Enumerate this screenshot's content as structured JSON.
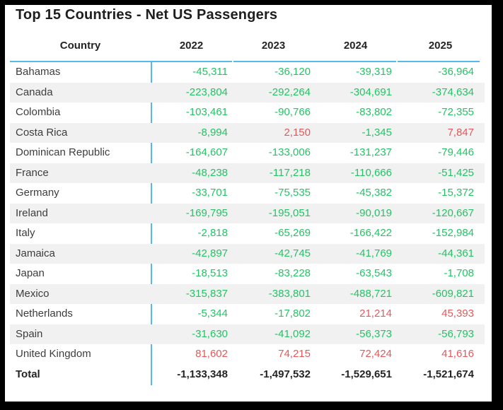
{
  "title": "Top 15 Countries - Net US Passengers",
  "columns": [
    "Country",
    "2022",
    "2023",
    "2024",
    "2025"
  ],
  "colors": {
    "negative_value": "#25c365",
    "positive_value": "#e05a5c",
    "grid_blue": "#55b9ec",
    "stripe_gray": "#f1f1f1",
    "frame_black": "#000000",
    "header_text": "#252423",
    "country_text": "#3d3d3d"
  },
  "chart_data": {
    "type": "table",
    "title": "Top 15 Countries - Net US Passengers",
    "columns": [
      "Country",
      "2022",
      "2023",
      "2024",
      "2025"
    ],
    "rows": [
      [
        "Bahamas",
        -45311,
        -36120,
        -39319,
        -36964
      ],
      [
        "Canada",
        -223804,
        -292264,
        -304691,
        -374634
      ],
      [
        "Colombia",
        -103461,
        -90766,
        -83802,
        -72355
      ],
      [
        "Costa Rica",
        -8994,
        2150,
        -1345,
        7847
      ],
      [
        "Dominican Republic",
        -164607,
        -133006,
        -131237,
        -79446
      ],
      [
        "France",
        -48238,
        -117218,
        -110666,
        -51425
      ],
      [
        "Germany",
        -33701,
        -75535,
        -45382,
        -15372
      ],
      [
        "Ireland",
        -169795,
        -195051,
        -90019,
        -120667
      ],
      [
        "Italy",
        -2818,
        -65269,
        -166422,
        -152984
      ],
      [
        "Jamaica",
        -42897,
        -42745,
        -41769,
        -44361
      ],
      [
        "Japan",
        -18513,
        -83228,
        -63543,
        -1708
      ],
      [
        "Mexico",
        -315837,
        -383801,
        -488721,
        -609821
      ],
      [
        "Netherlands",
        -5344,
        -17802,
        21214,
        45393
      ],
      [
        "Spain",
        -31630,
        -41092,
        -56373,
        -56793
      ],
      [
        "United Kingdom",
        81602,
        74215,
        72424,
        41616
      ]
    ],
    "total": [
      "Total",
      -1133348,
      -1497532,
      -1529651,
      -1521674
    ],
    "value_color_rule": "negative values rendered green, positive values rendered red",
    "layout": {
      "striped_rows": "even rows (2nd, 4th, ...) light gray",
      "alignment": "country left, numbers right, headers centered",
      "grid": "light blue vertical divider after Country column and segmented line under headers"
    }
  }
}
